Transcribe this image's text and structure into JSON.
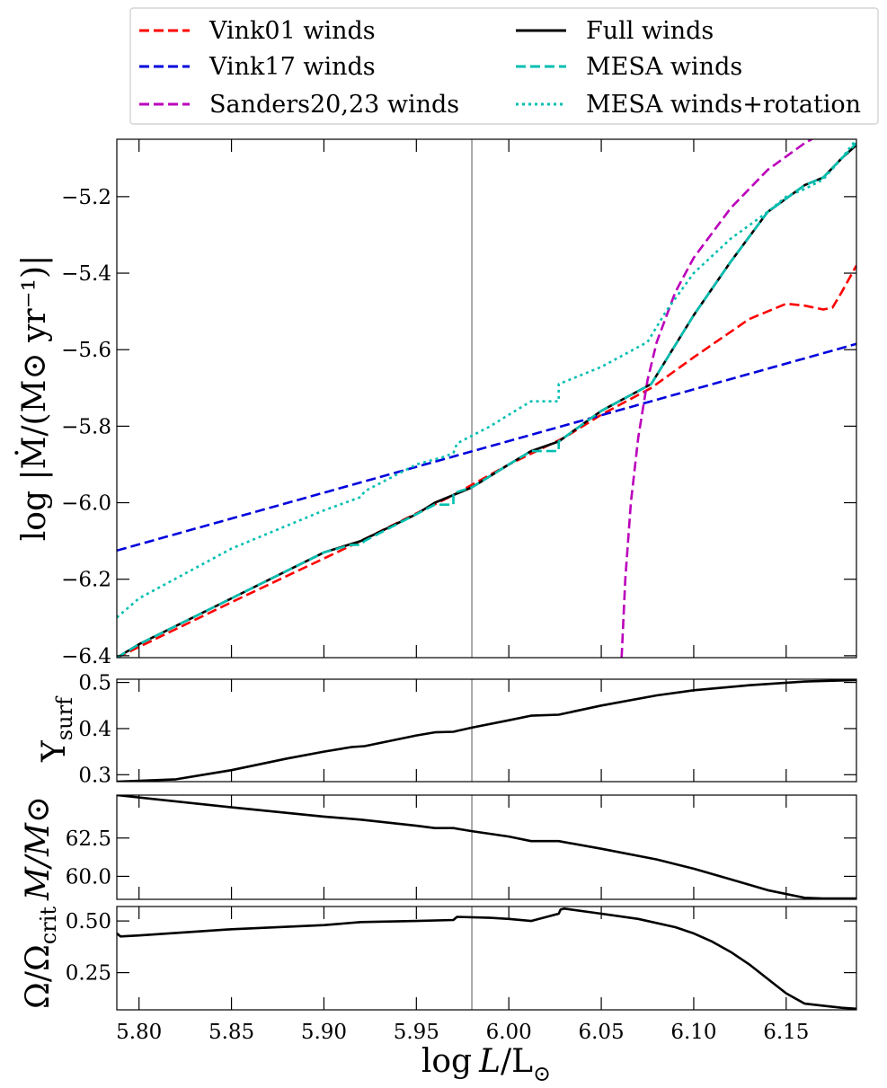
{
  "legend": {
    "entries": [
      {
        "label": "Vink01 winds",
        "color": "#ff0000",
        "dash": "dashed"
      },
      {
        "label": "Vink17 winds",
        "color": "#0000dd",
        "dash": "dashed"
      },
      {
        "label": "Sanders20,23 winds",
        "color": "#bb00bb",
        "dash": "dashed"
      },
      {
        "label": "Full winds",
        "color": "#000000",
        "dash": "solid"
      },
      {
        "label": "MESA winds",
        "color": "#00bfb0",
        "dash": "dashed"
      },
      {
        "label": "MESA winds+rotation",
        "color": "#00bfb0",
        "dash": "dotted"
      }
    ]
  },
  "axis_text": {
    "xlabel_main": "log",
    "xlabel_var": "L",
    "xlabel_rest": "/L",
    "sun": "⊙",
    "p1_ylabel": "log |Ṁ/(M⊙ yr⁻¹)|",
    "p2_ylabel_main": "Y",
    "p2_ylabel_sub": "surf",
    "p3_ylabel": "M/M⊙",
    "p4_ylabel_main": "Ω/Ω",
    "p4_ylabel_sub": "crit"
  },
  "chart_data": [
    {
      "type": "line",
      "id": "mdot",
      "ylabel": "log |Ṁ/(M⊙ yr⁻¹)|",
      "xlim": [
        5.788,
        6.188
      ],
      "ylim": [
        -6.405,
        -5.05
      ],
      "yticks": [
        -6.4,
        -6.2,
        -6.0,
        -5.8,
        -5.6,
        -5.4,
        -5.2
      ],
      "ytick_labels": [
        "−6.4",
        "−6.2",
        "−6.0",
        "−5.8",
        "−5.6",
        "−5.4",
        "−5.2"
      ],
      "vline_x": 5.98,
      "series": [
        {
          "name": "Vink01 winds",
          "color": "#ff0000",
          "dash": "dashed",
          "x": [
            5.788,
            5.85,
            5.92,
            5.97,
            6.0,
            6.03,
            6.05,
            6.077,
            6.1,
            6.13,
            6.15,
            6.16,
            6.17,
            6.175,
            6.18,
            6.188
          ],
          "y": [
            -6.405,
            -6.26,
            -6.1,
            -5.98,
            -5.9,
            -5.83,
            -5.77,
            -5.7,
            -5.62,
            -5.52,
            -5.48,
            -5.485,
            -5.495,
            -5.49,
            -5.45,
            -5.38
          ]
        },
        {
          "name": "Vink17 winds",
          "color": "#0000dd",
          "dash": "dashed",
          "x": [
            5.788,
            6.188
          ],
          "y": [
            -6.125,
            -5.585
          ]
        },
        {
          "name": "Sanders20,23 winds",
          "color": "#bb00bb",
          "dash": "dashed",
          "x": [
            6.061,
            6.063,
            6.066,
            6.07,
            6.075,
            6.08,
            6.09,
            6.1,
            6.12,
            6.14,
            6.16,
            6.175
          ],
          "y": [
            -6.405,
            -6.2,
            -6.0,
            -5.83,
            -5.68,
            -5.58,
            -5.45,
            -5.36,
            -5.23,
            -5.13,
            -5.06,
            -5.02
          ]
        },
        {
          "name": "Full winds",
          "color": "#000000",
          "dash": "solid",
          "x": [
            5.788,
            5.8,
            5.85,
            5.9,
            5.92,
            5.95,
            5.96,
            5.97,
            5.98,
            6.0,
            6.012,
            6.027,
            6.05,
            6.077,
            6.1,
            6.12,
            6.14,
            6.16,
            6.17,
            6.18,
            6.188
          ],
          "y": [
            -6.405,
            -6.37,
            -6.25,
            -6.13,
            -6.1,
            -6.03,
            -6.0,
            -5.98,
            -5.96,
            -5.9,
            -5.865,
            -5.84,
            -5.76,
            -5.69,
            -5.51,
            -5.37,
            -5.24,
            -5.17,
            -5.15,
            -5.1,
            -5.065
          ]
        },
        {
          "name": "MESA winds",
          "color": "#00bfb0",
          "dash": "dashed",
          "x": [
            5.788,
            5.8,
            5.85,
            5.9,
            5.915,
            5.92,
            5.922,
            5.95,
            5.96,
            5.97,
            5.97,
            5.98,
            6.0,
            6.012,
            6.025,
            6.027,
            6.027,
            6.05,
            6.077,
            6.1,
            6.12,
            6.14,
            6.16,
            6.17,
            6.18,
            6.188
          ],
          "y": [
            -6.405,
            -6.37,
            -6.25,
            -6.13,
            -6.11,
            -6.11,
            -6.1,
            -6.03,
            -6.005,
            -6.005,
            -5.975,
            -5.96,
            -5.9,
            -5.865,
            -5.865,
            -5.865,
            -5.84,
            -5.76,
            -5.69,
            -5.51,
            -5.37,
            -5.24,
            -5.17,
            -5.15,
            -5.1,
            -5.06
          ]
        },
        {
          "name": "MESA winds+rotation",
          "color": "#00bfb0",
          "dash": "dotted",
          "x": [
            5.788,
            5.8,
            5.85,
            5.9,
            5.92,
            5.922,
            5.95,
            5.965,
            5.97,
            5.972,
            5.99,
            6.0,
            6.012,
            6.027,
            6.027,
            6.05,
            6.075,
            6.085,
            6.1,
            6.12,
            6.14,
            6.15,
            6.16,
            6.17,
            6.18,
            6.188
          ],
          "y": [
            -6.3,
            -6.25,
            -6.12,
            -6.02,
            -5.985,
            -5.97,
            -5.9,
            -5.88,
            -5.87,
            -5.845,
            -5.8,
            -5.77,
            -5.735,
            -5.735,
            -5.69,
            -5.645,
            -5.58,
            -5.5,
            -5.4,
            -5.31,
            -5.24,
            -5.2,
            -5.18,
            -5.155,
            -5.1,
            -5.05
          ]
        }
      ]
    },
    {
      "type": "line",
      "id": "ysurf",
      "ylabel": "Y_surf",
      "xlim": [
        5.788,
        6.188
      ],
      "ylim": [
        0.285,
        0.507
      ],
      "yticks": [
        0.3,
        0.4,
        0.5
      ],
      "ytick_labels": [
        "0.3",
        "0.4",
        "0.5"
      ],
      "vline_x": 5.98,
      "series": [
        {
          "name": "Full winds",
          "color": "#000000",
          "dash": "solid",
          "x": [
            5.788,
            5.82,
            5.85,
            5.88,
            5.9,
            5.915,
            5.922,
            5.95,
            5.96,
            5.97,
            5.98,
            6.0,
            6.012,
            6.027,
            6.05,
            6.08,
            6.1,
            6.13,
            6.16,
            6.188
          ],
          "y": [
            0.285,
            0.29,
            0.31,
            0.335,
            0.35,
            0.36,
            0.362,
            0.385,
            0.392,
            0.393,
            0.402,
            0.418,
            0.428,
            0.43,
            0.45,
            0.472,
            0.483,
            0.494,
            0.502,
            0.505
          ]
        }
      ]
    },
    {
      "type": "line",
      "id": "mass",
      "ylabel": "M/M⊙",
      "xlim": [
        5.788,
        6.188
      ],
      "ylim": [
        58.5,
        65.3
      ],
      "yticks": [
        60.0,
        62.5
      ],
      "ytick_labels": [
        "60.0",
        "62.5"
      ],
      "vline_x": 5.98,
      "series": [
        {
          "name": "Full winds",
          "color": "#000000",
          "dash": "solid",
          "x": [
            5.788,
            5.85,
            5.9,
            5.92,
            5.95,
            5.96,
            5.97,
            5.98,
            6.0,
            6.012,
            6.027,
            6.05,
            6.08,
            6.1,
            6.12,
            6.14,
            6.16,
            6.17,
            6.188
          ],
          "y": [
            65.3,
            64.5,
            63.9,
            63.7,
            63.3,
            63.15,
            63.15,
            62.95,
            62.6,
            62.3,
            62.3,
            61.8,
            61.1,
            60.5,
            59.8,
            59.1,
            58.6,
            58.55,
            58.55
          ]
        }
      ]
    },
    {
      "type": "line",
      "id": "omega",
      "ylabel": "Ω/Ω_crit",
      "xlim": [
        5.788,
        6.188
      ],
      "ylim": [
        0.07,
        0.57
      ],
      "yticks": [
        0.25,
        0.5
      ],
      "ytick_labels": [
        "0.25",
        "0.50"
      ],
      "xticks": [
        5.8,
        5.85,
        5.9,
        5.95,
        6.0,
        6.05,
        6.1,
        6.15
      ],
      "xtick_labels": [
        "5.80",
        "5.85",
        "5.90",
        "5.95",
        "6.00",
        "6.05",
        "6.10",
        "6.15"
      ],
      "vline_x": 5.98,
      "series": [
        {
          "name": "Full winds",
          "color": "#000000",
          "dash": "solid",
          "x": [
            5.788,
            5.79,
            5.8,
            5.85,
            5.9,
            5.92,
            5.95,
            5.97,
            5.972,
            5.99,
            6.0,
            6.012,
            6.027,
            6.028,
            6.03,
            6.05,
            6.07,
            6.09,
            6.1,
            6.11,
            6.12,
            6.13,
            6.14,
            6.15,
            6.16,
            6.17,
            6.18,
            6.188
          ],
          "y": [
            0.44,
            0.425,
            0.43,
            0.46,
            0.48,
            0.495,
            0.5,
            0.505,
            0.52,
            0.515,
            0.51,
            0.5,
            0.535,
            0.555,
            0.56,
            0.535,
            0.51,
            0.47,
            0.44,
            0.4,
            0.35,
            0.29,
            0.22,
            0.15,
            0.1,
            0.09,
            0.08,
            0.075
          ]
        }
      ]
    }
  ]
}
